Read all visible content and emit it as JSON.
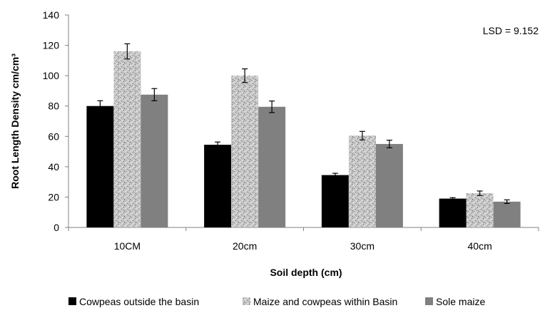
{
  "chart_data": {
    "type": "bar",
    "categories": [
      "10CM",
      "20cm",
      "30cm",
      "40cm"
    ],
    "series": [
      {
        "name": "Cowpeas outside the basin",
        "values": [
          80,
          54.5,
          34.5,
          19
        ],
        "errors": [
          3.5,
          1.8,
          1.2,
          0.6
        ],
        "color": "#000000",
        "pattern": "solid"
      },
      {
        "name": "Maize and cowpeas within Basin",
        "values": [
          116,
          100,
          60.5,
          22.5
        ],
        "errors": [
          5,
          4.5,
          2.8,
          1.5
        ],
        "color": "#c0c0c0",
        "pattern": "speckled"
      },
      {
        "name": "Sole maize",
        "values": [
          87.5,
          79.5,
          55,
          17
        ],
        "errors": [
          4,
          3.8,
          2.5,
          1.2
        ],
        "color": "#808080",
        "pattern": "solid"
      }
    ],
    "xlabel": "Soil depth (cm)",
    "ylabel": "Root Length Density cm/cm³",
    "ylim": [
      0,
      140
    ],
    "yticks": [
      0,
      20,
      40,
      60,
      80,
      100,
      120,
      140
    ],
    "annotation": "LSD = 9.152",
    "legend_position": "bottom",
    "grid": false
  }
}
